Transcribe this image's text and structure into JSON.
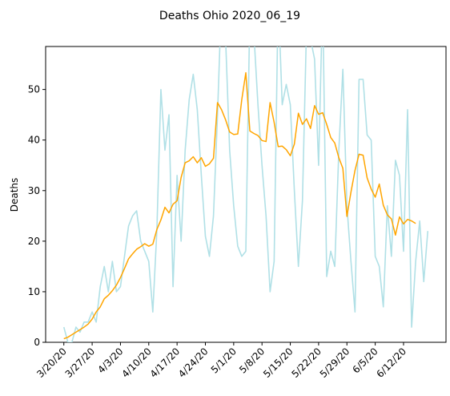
{
  "chart_data": {
    "type": "line",
    "title": "Deaths Ohio 2020_06_19",
    "xlabel": "",
    "ylabel": "Deaths",
    "ylim": [
      0,
      58.5
    ],
    "yticks": [
      0,
      10,
      20,
      30,
      40,
      50
    ],
    "grid": false,
    "legend": "none",
    "x_start": "3/20/20",
    "x_tick_labels": [
      "3/20/20",
      "3/27/20",
      "4/3/20",
      "4/10/20",
      "4/17/20",
      "4/24/20",
      "5/1/20",
      "5/8/20",
      "5/15/20",
      "5/22/20",
      "5/29/20",
      "6/5/20",
      "6/12/20"
    ],
    "series": [
      {
        "color": "#b0e0e6",
        "values": [
          3,
          0,
          0,
          3,
          2,
          4,
          4,
          6,
          4,
          11,
          15,
          10,
          16,
          10,
          11,
          17,
          23,
          25,
          26,
          20,
          18,
          16,
          6,
          22,
          50,
          38,
          45,
          11,
          33,
          20,
          38,
          48,
          53,
          46,
          33,
          21,
          17,
          25,
          45,
          70,
          60,
          38,
          27,
          19,
          17,
          18,
          66,
          61,
          47,
          35,
          25,
          10,
          16,
          82,
          47,
          51,
          47,
          30,
          15,
          28,
          62,
          60,
          56,
          35,
          71,
          13,
          18,
          15,
          38,
          54,
          27,
          16,
          6,
          52,
          52,
          41,
          40,
          17,
          15,
          7,
          27,
          17,
          36,
          33,
          18,
          46,
          3,
          16,
          24,
          12,
          22
        ],
        "linewidth": 1.6
      },
      {
        "color": "#ffa500",
        "values": [
          0.7,
          1.0,
          1.5,
          2.0,
          2.5,
          3.0,
          3.6,
          4.6,
          6.0,
          7.0,
          8.6,
          9.3,
          10.2,
          11.3,
          12.8,
          14.6,
          16.5,
          17.5,
          18.4,
          18.9,
          19.5,
          19.0,
          19.4,
          22.3,
          24.2,
          26.7,
          25.6,
          27.3,
          28.0,
          32.6,
          35.5,
          35.9,
          36.7,
          35.5,
          36.5,
          34.8,
          35.3,
          36.4,
          47.4,
          46.0,
          44.0,
          41.6,
          41.1,
          41.2,
          48.0,
          53.3,
          41.8,
          41.3,
          40.9,
          39.9,
          39.7,
          47.4,
          43.5,
          38.7,
          38.8,
          38.1,
          36.9,
          39.2,
          45.3,
          43.1,
          44.2,
          42.3,
          46.8,
          45.1,
          45.4,
          43.1,
          40.5,
          39.4,
          36.5,
          34.4,
          24.9,
          29.7,
          34.0,
          37.2,
          37.0,
          32.5,
          30.3,
          28.7,
          31.3,
          27.1,
          25.2,
          24.4,
          21.2,
          24.8,
          23.4,
          24.3,
          24.0,
          23.5
        ]
      }
    ]
  }
}
